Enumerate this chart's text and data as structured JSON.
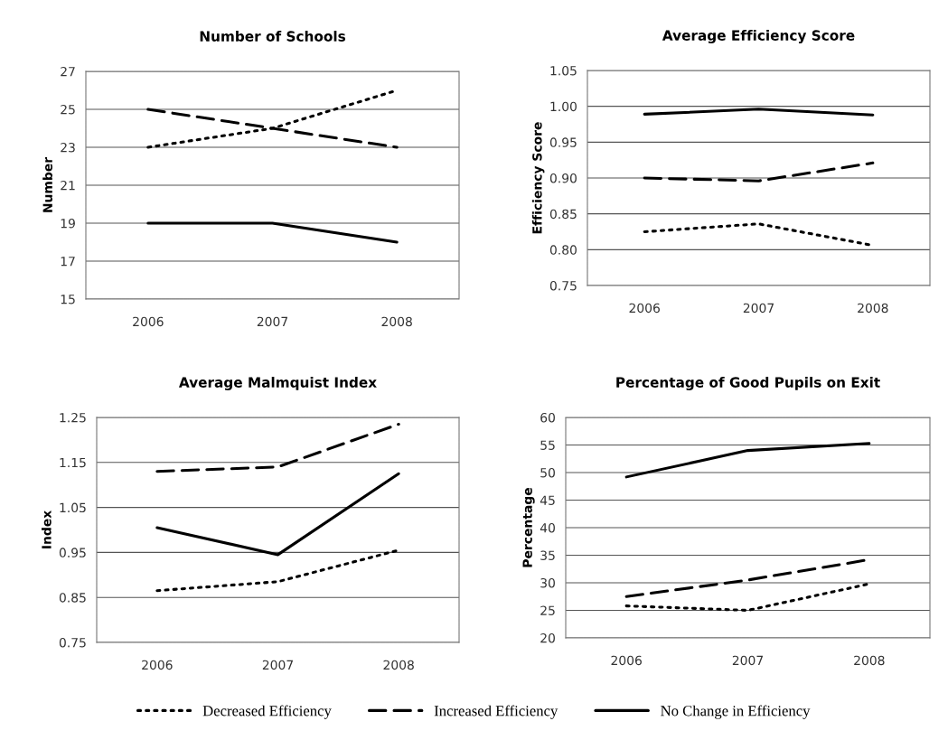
{
  "chart_data": [
    {
      "type": "line",
      "title": "Number of Schools",
      "ylabel": "Number",
      "categories": [
        "2006",
        "2007",
        "2008"
      ],
      "ylim": [
        15,
        27
      ],
      "yticks": [
        15,
        17,
        19,
        21,
        23,
        25,
        27
      ],
      "grid": "y",
      "legend": "bottom",
      "series": [
        {
          "name": "Decreased Efficiency",
          "color": "#000000",
          "line_style": "dotted",
          "values": [
            23,
            24,
            26
          ]
        },
        {
          "name": "Increased Efficiency",
          "color": "#000000",
          "line_style": "dashed",
          "values": [
            25,
            24,
            23
          ]
        },
        {
          "name": "No Change in Efficiency",
          "color": "#000000",
          "line_style": "solid",
          "values": [
            19,
            19,
            18
          ]
        }
      ]
    },
    {
      "type": "line",
      "title": "Average Efficiency Score",
      "ylabel": "Efficiency Score",
      "categories": [
        "2006",
        "2007",
        "2008"
      ],
      "ylim": [
        0.75,
        1.05
      ],
      "yticks": [
        {
          "value": 0.75,
          "label": "0.75"
        },
        {
          "value": 0.8,
          "label": "0.80"
        },
        {
          "value": 0.85,
          "label": "0.85"
        },
        {
          "value": 0.9,
          "label": "0.90"
        },
        {
          "value": 0.95,
          "label": "0.95"
        },
        {
          "value": 1.0,
          "label": "1.00"
        },
        {
          "value": 1.05,
          "label": "1.05"
        }
      ],
      "grid": "y",
      "series": [
        {
          "color": "#000000",
          "line_style": "dotted",
          "values": [
            0.825,
            0.836,
            0.806
          ]
        },
        {
          "color": "#000000",
          "line_style": "dashed",
          "values": [
            0.9,
            0.896,
            0.921
          ]
        },
        {
          "color": "#000000",
          "line_style": "solid",
          "values": [
            0.989,
            0.996,
            0.988
          ]
        }
      ]
    },
    {
      "type": "line",
      "title": "Average Malmquist Index",
      "ylabel": "Index",
      "categories": [
        "2006",
        "2007",
        "2008"
      ],
      "ylim": [
        0.75,
        1.25
      ],
      "yticks": [
        0.75,
        0.85,
        0.95,
        1.05,
        1.15,
        1.25
      ],
      "grid": "y",
      "series": [
        {
          "color": "#000000",
          "line_style": "dotted",
          "values": [
            0.865,
            0.885,
            0.955
          ]
        },
        {
          "color": "#000000",
          "line_style": "dashed",
          "values": [
            1.13,
            1.14,
            1.235
          ]
        },
        {
          "color": "#000000",
          "line_style": "solid",
          "values": [
            1.005,
            0.945,
            1.125
          ]
        }
      ]
    },
    {
      "type": "line",
      "title": "Percentage of Good Pupils on Exit",
      "ylabel": "Percentage",
      "categories": [
        "2006",
        "2007",
        "2008"
      ],
      "ylim": [
        20,
        60
      ],
      "yticks": [
        20,
        25,
        30,
        35,
        40,
        45,
        50,
        55,
        60
      ],
      "grid": "y",
      "series": [
        {
          "color": "#000000",
          "line_style": "dotted",
          "values": [
            25.8,
            25,
            29.8
          ]
        },
        {
          "color": "#000000",
          "line_style": "dashed",
          "values": [
            27.5,
            30.5,
            34.2
          ]
        },
        {
          "color": "#000000",
          "line_style": "solid",
          "values": [
            49.2,
            54,
            55.3
          ]
        }
      ]
    }
  ]
}
